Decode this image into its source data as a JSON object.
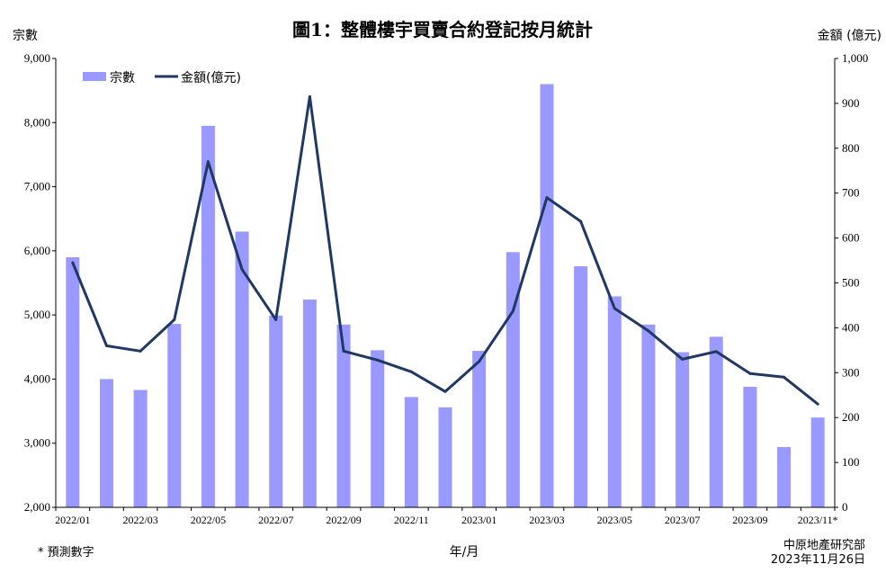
{
  "title": "圖1：整體樓宇買賣合約登記按月統計",
  "footnote": "* 預測數字",
  "source_line1": "中原地產研究部",
  "source_line2": "2023年11月26日",
  "colors": {
    "bar": "#9999ff",
    "line": "#1f3864",
    "axis": "#000000"
  },
  "chart_data": {
    "type": "bar+line",
    "xlabel": "年/月",
    "ylabel_left": "宗數",
    "ylabel_right": "金額 (億元)",
    "ylim_left": [
      2000,
      9000
    ],
    "ylim_right": [
      0,
      1000
    ],
    "yticks_left": [
      "2,000",
      "3,000",
      "4,000",
      "5,000",
      "6,000",
      "7,000",
      "8,000",
      "9,000"
    ],
    "yticks_right": [
      "0",
      "100",
      "200",
      "300",
      "400",
      "500",
      "600",
      "700",
      "800",
      "900",
      "1,000"
    ],
    "legend_position": "top-left",
    "categories": [
      "2022/01",
      "2022/02",
      "2022/03",
      "2022/04",
      "2022/05",
      "2022/06",
      "2022/07",
      "2022/08",
      "2022/09",
      "2022/10",
      "2022/11",
      "2022/12",
      "2023/01",
      "2023/02",
      "2023/03",
      "2023/04",
      "2023/05",
      "2023/06",
      "2023/07",
      "2023/08",
      "2023/09",
      "2023/10",
      "2023/11*"
    ],
    "xtick_labels": [
      "2022/01",
      "",
      "2022/03",
      "",
      "2022/05",
      "",
      "2022/07",
      "",
      "2022/09",
      "",
      "2022/11",
      "",
      "2023/01",
      "",
      "2023/03",
      "",
      "2023/05",
      "",
      "2023/07",
      "",
      "2023/09",
      "",
      "2023/11*"
    ],
    "series": [
      {
        "name": "宗數",
        "type": "bar",
        "axis": "left",
        "values": [
          5900,
          4000,
          3830,
          4860,
          7950,
          6300,
          4990,
          5240,
          4850,
          4450,
          3720,
          3560,
          4440,
          5980,
          8600,
          5760,
          5290,
          4850,
          4420,
          4660,
          3880,
          2940,
          3400
        ]
      },
      {
        "name": "金額(億元)",
        "type": "line",
        "axis": "right",
        "values": [
          545,
          360,
          348,
          418,
          770,
          530,
          418,
          915,
          348,
          328,
          302,
          258,
          325,
          437,
          690,
          637,
          443,
          393,
          330,
          347,
          298,
          290,
          230
        ]
      }
    ]
  }
}
